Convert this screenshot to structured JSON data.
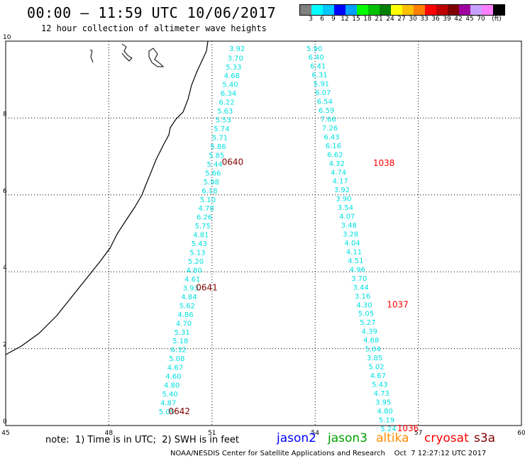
{
  "header": {
    "title": "00:00 – 11:59 UTC 10/06/2017",
    "subtitle": "12 hour collection of altimeter wave heights"
  },
  "color_scale": {
    "colors": [
      "#808080",
      "#00ffff",
      "#00c8ff",
      "#0000ff",
      "#00a0ff",
      "#00ff00",
      "#00c000",
      "#008000",
      "#ffff00",
      "#ffc000",
      "#ff8000",
      "#ff0000",
      "#c00000",
      "#800000",
      "#a000a0",
      "#c8a0ff",
      "#ff80ff",
      "#000000"
    ],
    "labels": [
      "3",
      "6",
      "9",
      "12",
      "15",
      "18",
      "21",
      "24",
      "27",
      "30",
      "33",
      "36",
      "39",
      "42",
      "45",
      "70",
      "(ft)"
    ]
  },
  "map": {
    "lon_range": [
      45,
      60
    ],
    "lat_range": [
      0,
      10
    ],
    "x_ticks": [
      "45",
      "48",
      "51",
      "54",
      "57",
      "60"
    ],
    "y_ticks": [
      "0",
      "2",
      "4",
      "6",
      "8",
      "10"
    ],
    "tracks": [
      {
        "satellite": "jason3",
        "color": "#00e0e0",
        "points": [
          {
            "lon": 51.73,
            "lat": 9.82,
            "swh": "3.92"
          },
          {
            "lon": 51.68,
            "lat": 9.57,
            "swh": "3.70"
          },
          {
            "lon": 51.63,
            "lat": 9.34,
            "swh": "5.33"
          },
          {
            "lon": 51.58,
            "lat": 9.11,
            "swh": "4.68"
          },
          {
            "lon": 51.53,
            "lat": 8.88,
            "swh": "5.40"
          },
          {
            "lon": 51.48,
            "lat": 8.65,
            "swh": "6.34"
          },
          {
            "lon": 51.43,
            "lat": 8.42,
            "swh": "6.22"
          },
          {
            "lon": 51.38,
            "lat": 8.19,
            "swh": "5.63"
          },
          {
            "lon": 51.33,
            "lat": 7.96,
            "swh": "5.53"
          },
          {
            "lon": 51.28,
            "lat": 7.73,
            "swh": "5.74"
          },
          {
            "lon": 51.23,
            "lat": 7.5,
            "swh": "5.71"
          },
          {
            "lon": 51.18,
            "lat": 7.27,
            "swh": "5.86"
          },
          {
            "lon": 51.13,
            "lat": 7.04,
            "swh": "5.85"
          },
          {
            "lon": 51.08,
            "lat": 6.81,
            "swh": "5.44"
          },
          {
            "lon": 51.03,
            "lat": 6.58,
            "swh": "5.66"
          },
          {
            "lon": 50.98,
            "lat": 6.35,
            "swh": "5.98"
          },
          {
            "lon": 50.93,
            "lat": 6.12,
            "swh": "6.18"
          },
          {
            "lon": 50.88,
            "lat": 5.89,
            "swh": "5.10"
          },
          {
            "lon": 50.83,
            "lat": 5.66,
            "swh": "4.78"
          },
          {
            "lon": 50.78,
            "lat": 5.43,
            "swh": "6.26"
          },
          {
            "lon": 50.73,
            "lat": 5.2,
            "swh": "5.75"
          },
          {
            "lon": 50.68,
            "lat": 4.97,
            "swh": "4.81"
          },
          {
            "lon": 50.63,
            "lat": 4.74,
            "swh": "5.43"
          },
          {
            "lon": 50.58,
            "lat": 4.51,
            "swh": "5.13"
          },
          {
            "lon": 50.53,
            "lat": 4.28,
            "swh": "5.20"
          },
          {
            "lon": 50.48,
            "lat": 4.05,
            "swh": "4.80"
          },
          {
            "lon": 50.43,
            "lat": 3.82,
            "swh": "4.61"
          },
          {
            "lon": 50.38,
            "lat": 3.59,
            "swh": "3.93"
          },
          {
            "lon": 50.33,
            "lat": 3.36,
            "swh": "4.84"
          },
          {
            "lon": 50.28,
            "lat": 3.13,
            "swh": "5.62"
          },
          {
            "lon": 50.23,
            "lat": 2.9,
            "swh": "4.86"
          },
          {
            "lon": 50.18,
            "lat": 2.67,
            "swh": "4.70"
          },
          {
            "lon": 50.13,
            "lat": 2.44,
            "swh": "5.31"
          },
          {
            "lon": 50.08,
            "lat": 2.21,
            "swh": "5.18"
          },
          {
            "lon": 50.03,
            "lat": 1.98,
            "swh": "6.32"
          },
          {
            "lon": 49.98,
            "lat": 1.75,
            "swh": "5.08"
          },
          {
            "lon": 49.93,
            "lat": 1.52,
            "swh": "4.67"
          },
          {
            "lon": 49.88,
            "lat": 1.29,
            "swh": "4.60"
          },
          {
            "lon": 49.83,
            "lat": 1.06,
            "swh": "4.80"
          },
          {
            "lon": 49.78,
            "lat": 0.83,
            "swh": "5.40"
          },
          {
            "lon": 49.73,
            "lat": 0.6,
            "swh": "4.87"
          },
          {
            "lon": 49.68,
            "lat": 0.37,
            "swh": "5.05"
          }
        ],
        "time_labels": [
          {
            "lon": 51.6,
            "lat": 6.85,
            "text": "0640"
          },
          {
            "lon": 50.85,
            "lat": 3.59,
            "text": "0641"
          },
          {
            "lon": 50.05,
            "lat": 0.37,
            "text": "0642"
          }
        ]
      },
      {
        "satellite": "cryosat",
        "color": "#00e0e0",
        "points": [
          {
            "lon": 53.98,
            "lat": 9.82,
            "swh": "5.90"
          },
          {
            "lon": 54.03,
            "lat": 9.59,
            "swh": "6.40"
          },
          {
            "lon": 54.08,
            "lat": 9.36,
            "swh": "6.41"
          },
          {
            "lon": 54.13,
            "lat": 9.13,
            "swh": "6.31"
          },
          {
            "lon": 54.18,
            "lat": 8.9,
            "swh": "5.91"
          },
          {
            "lon": 54.23,
            "lat": 8.67,
            "swh": "6.07"
          },
          {
            "lon": 54.28,
            "lat": 8.44,
            "swh": "6.54"
          },
          {
            "lon": 54.33,
            "lat": 8.21,
            "swh": "6.59"
          },
          {
            "lon": 54.38,
            "lat": 7.98,
            "swh": "7.66"
          },
          {
            "lon": 54.43,
            "lat": 7.75,
            "swh": "7.26"
          },
          {
            "lon": 54.48,
            "lat": 7.52,
            "swh": "6.43"
          },
          {
            "lon": 54.53,
            "lat": 7.29,
            "swh": "6.16"
          },
          {
            "lon": 54.58,
            "lat": 7.06,
            "swh": "6.62"
          },
          {
            "lon": 54.63,
            "lat": 6.83,
            "swh": "4.32"
          },
          {
            "lon": 54.68,
            "lat": 6.6,
            "swh": "4.74"
          },
          {
            "lon": 54.73,
            "lat": 6.37,
            "swh": "4.17"
          },
          {
            "lon": 54.78,
            "lat": 6.14,
            "swh": "3.92"
          },
          {
            "lon": 54.83,
            "lat": 5.91,
            "swh": "3.90"
          },
          {
            "lon": 54.88,
            "lat": 5.68,
            "swh": "3.54"
          },
          {
            "lon": 54.93,
            "lat": 5.45,
            "swh": "4.07"
          },
          {
            "lon": 54.98,
            "lat": 5.22,
            "swh": "3.48"
          },
          {
            "lon": 55.03,
            "lat": 4.99,
            "swh": "3.28"
          },
          {
            "lon": 55.08,
            "lat": 4.76,
            "swh": "4.04"
          },
          {
            "lon": 55.13,
            "lat": 4.53,
            "swh": "4.11"
          },
          {
            "lon": 55.18,
            "lat": 4.3,
            "swh": "4.51"
          },
          {
            "lon": 55.23,
            "lat": 4.07,
            "swh": "4.96"
          },
          {
            "lon": 55.28,
            "lat": 3.84,
            "swh": "3.70"
          },
          {
            "lon": 55.33,
            "lat": 3.61,
            "swh": "3.44"
          },
          {
            "lon": 55.38,
            "lat": 3.38,
            "swh": "3.16"
          },
          {
            "lon": 55.43,
            "lat": 3.15,
            "swh": "4.30"
          },
          {
            "lon": 55.48,
            "lat": 2.92,
            "swh": "5.05"
          },
          {
            "lon": 55.53,
            "lat": 2.69,
            "swh": "5.27"
          },
          {
            "lon": 55.58,
            "lat": 2.46,
            "swh": "4.39"
          },
          {
            "lon": 55.63,
            "lat": 2.23,
            "swh": "4.68"
          },
          {
            "lon": 55.68,
            "lat": 2.0,
            "swh": "5.04"
          },
          {
            "lon": 55.73,
            "lat": 1.77,
            "swh": "3.85"
          },
          {
            "lon": 55.78,
            "lat": 1.54,
            "swh": "5.02"
          },
          {
            "lon": 55.83,
            "lat": 1.31,
            "swh": "4.67"
          },
          {
            "lon": 55.88,
            "lat": 1.08,
            "swh": "5.43"
          },
          {
            "lon": 55.93,
            "lat": 0.85,
            "swh": "4.73"
          },
          {
            "lon": 55.98,
            "lat": 0.62,
            "swh": "3.95"
          },
          {
            "lon": 56.03,
            "lat": 0.39,
            "swh": "4.80"
          },
          {
            "lon": 56.08,
            "lat": 0.16,
            "swh": "5.19"
          },
          {
            "lon": 56.13,
            "lat": -0.07,
            "swh": "5.24"
          }
        ],
        "time_labels": [
          {
            "lon": 56.0,
            "lat": 6.83,
            "text": "1038"
          },
          {
            "lon": 56.4,
            "lat": 3.15,
            "text": "1037"
          },
          {
            "lon": 56.7,
            "lat": -0.07,
            "text": "1036"
          }
        ]
      }
    ]
  },
  "footer": {
    "note": "note:  1) Time is in UTC;  2) SWH is in feet",
    "legend": [
      {
        "name": "jason2",
        "color": "#0000ff"
      },
      {
        "name": "jason3",
        "color": "#00a000"
      },
      {
        "name": "altika",
        "color": "#ff8c00"
      },
      {
        "name": "cryosat",
        "color": "#ff0000"
      },
      {
        "name": "s3a",
        "color": "#800000"
      }
    ],
    "credit": "NOAA/NESDIS Center for Satellite Applications and Research    Oct  7 12:27:12 UTC 2017"
  }
}
